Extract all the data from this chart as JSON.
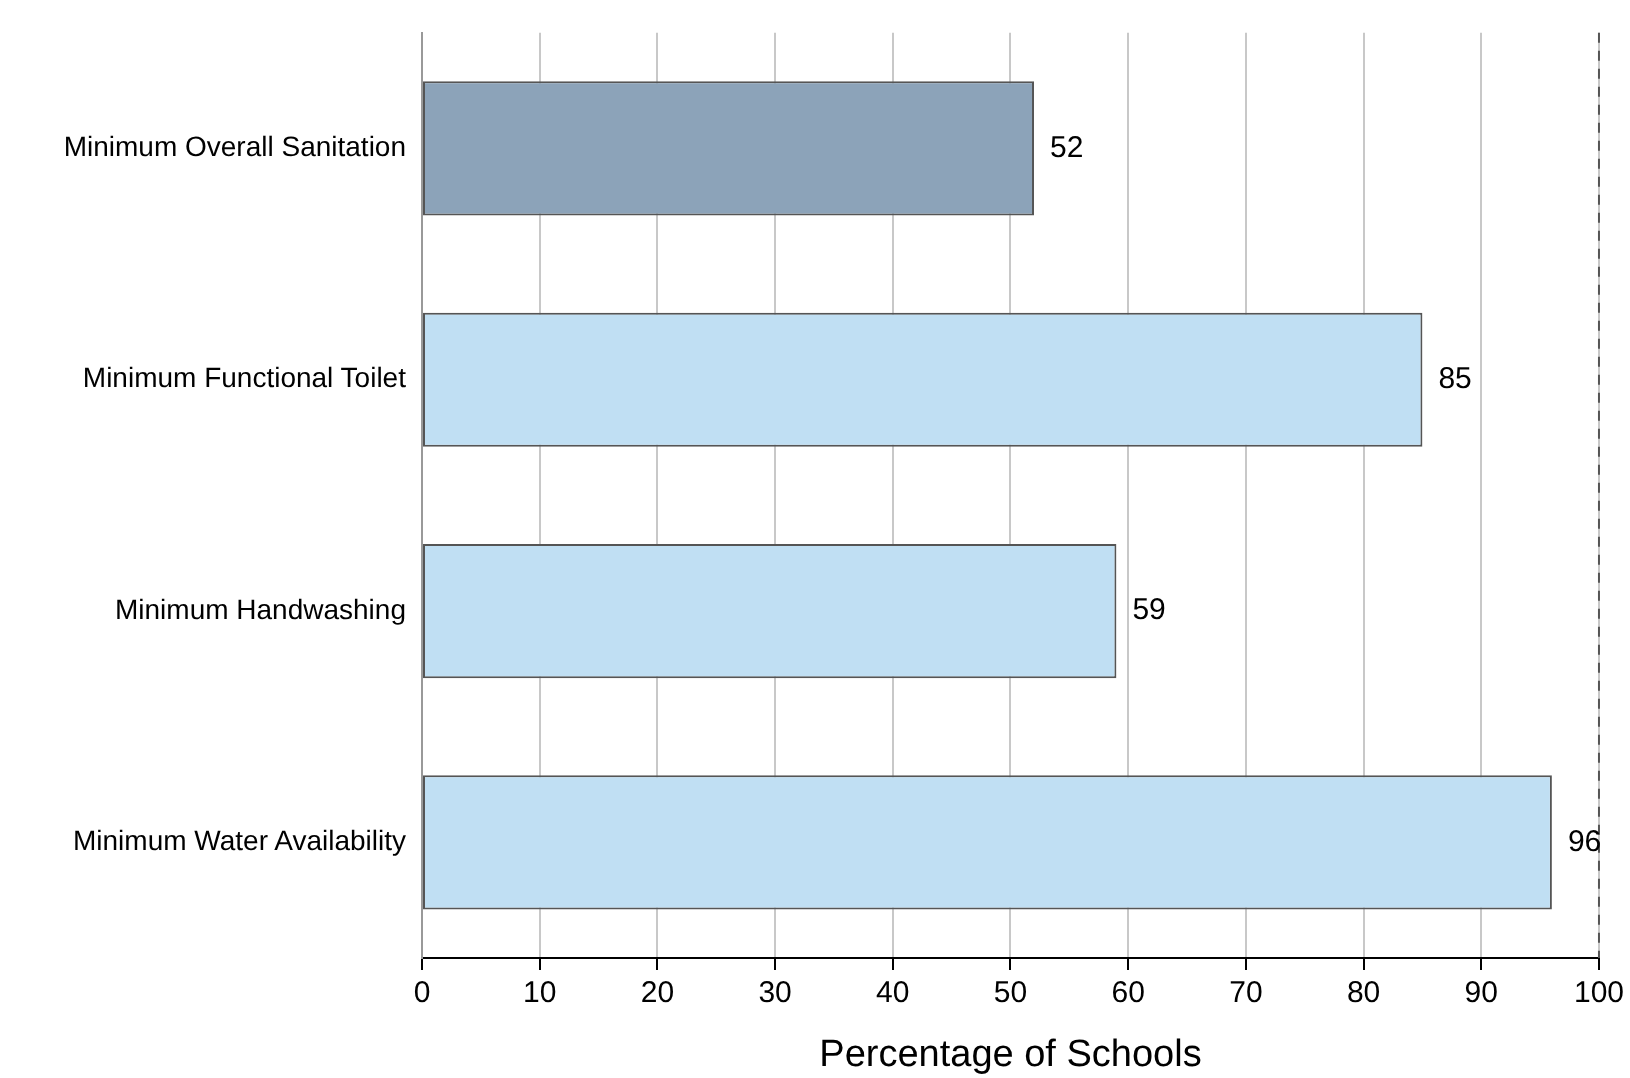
{
  "chart_data": {
    "type": "bar",
    "orientation": "horizontal",
    "xlabel": "Percentage of Schools",
    "categories": [
      "Minimum Overall Sanitation",
      "Minimum Functional Toilet",
      "Minimum Handwashing",
      "Minimum Water Availability"
    ],
    "values": [
      52,
      85,
      59,
      96
    ],
    "colors": [
      "#8ca3b9",
      "#c0dff3",
      "#c0dff3",
      "#c0dff3"
    ],
    "xlim": [
      0,
      100
    ],
    "xticks": [
      0,
      10,
      20,
      30,
      40,
      50,
      60,
      70,
      80,
      90,
      100
    ],
    "grid": "x",
    "data_labels": true,
    "legend": false,
    "ref_lines": [
      {
        "axis": "x",
        "value": 100,
        "line_style": "dashed",
        "color": "#555555"
      }
    ]
  }
}
